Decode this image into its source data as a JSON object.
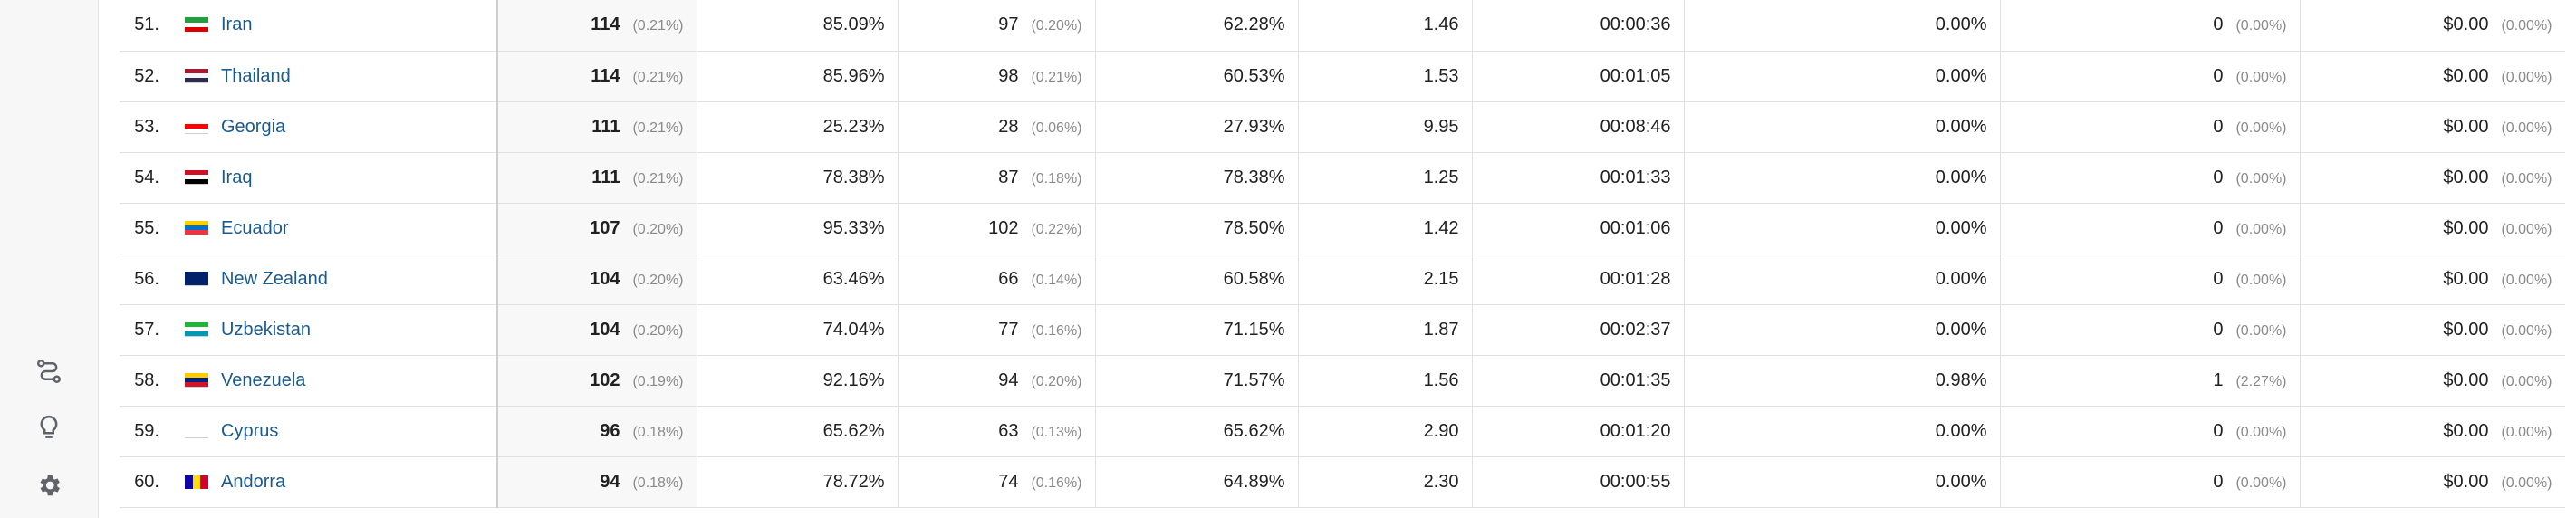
{
  "sidebar": {
    "icons": [
      {
        "name": "route-icon"
      },
      {
        "name": "lightbulb-icon"
      },
      {
        "name": "gear-icon"
      }
    ]
  },
  "rows": [
    {
      "index": "51.",
      "country": "Iran",
      "flag": [
        "#239f40",
        "#ffffff",
        "#da0000"
      ],
      "users": "114",
      "users_pct": "(0.21%)",
      "bounce": "85.09%",
      "new_users": "97",
      "new_users_pct": "(0.20%)",
      "rate2": "62.28%",
      "pages": "1.46",
      "duration": "00:00:36",
      "conv": "0.00%",
      "goal": "0",
      "goal_pct": "(0.00%)",
      "revenue": "$0.00",
      "revenue_pct": "(0.00%)"
    },
    {
      "index": "52.",
      "country": "Thailand",
      "flag": [
        "#a51931",
        "#f4f5f8",
        "#2d2a4a"
      ],
      "users": "114",
      "users_pct": "(0.21%)",
      "bounce": "85.96%",
      "new_users": "98",
      "new_users_pct": "(0.21%)",
      "rate2": "60.53%",
      "pages": "1.53",
      "duration": "00:01:05",
      "conv": "0.00%",
      "goal": "0",
      "goal_pct": "(0.00%)",
      "revenue": "$0.00",
      "revenue_pct": "(0.00%)"
    },
    {
      "index": "53.",
      "country": "Georgia",
      "flag": [
        "#ffffff",
        "#ff0000",
        "#ffffff"
      ],
      "users": "111",
      "users_pct": "(0.21%)",
      "bounce": "25.23%",
      "new_users": "28",
      "new_users_pct": "(0.06%)",
      "rate2": "27.93%",
      "pages": "9.95",
      "duration": "00:08:46",
      "conv": "0.00%",
      "goal": "0",
      "goal_pct": "(0.00%)",
      "revenue": "$0.00",
      "revenue_pct": "(0.00%)"
    },
    {
      "index": "54.",
      "country": "Iraq",
      "flag": [
        "#ce1126",
        "#ffffff",
        "#000000"
      ],
      "users": "111",
      "users_pct": "(0.21%)",
      "bounce": "78.38%",
      "new_users": "87",
      "new_users_pct": "(0.18%)",
      "rate2": "78.38%",
      "pages": "1.25",
      "duration": "00:01:33",
      "conv": "0.00%",
      "goal": "0",
      "goal_pct": "(0.00%)",
      "revenue": "$0.00",
      "revenue_pct": "(0.00%)"
    },
    {
      "index": "55.",
      "country": "Ecuador",
      "flag": [
        "#ffd100",
        "#0072ce",
        "#ef3340"
      ],
      "users": "107",
      "users_pct": "(0.20%)",
      "bounce": "95.33%",
      "new_users": "102",
      "new_users_pct": "(0.22%)",
      "rate2": "78.50%",
      "pages": "1.42",
      "duration": "00:01:06",
      "conv": "0.00%",
      "goal": "0",
      "goal_pct": "(0.00%)",
      "revenue": "$0.00",
      "revenue_pct": "(0.00%)"
    },
    {
      "index": "56.",
      "country": "New Zealand",
      "flag": [
        "#012169",
        "#012169",
        "#012169"
      ],
      "users": "104",
      "users_pct": "(0.20%)",
      "bounce": "63.46%",
      "new_users": "66",
      "new_users_pct": "(0.14%)",
      "rate2": "60.58%",
      "pages": "2.15",
      "duration": "00:01:28",
      "conv": "0.00%",
      "goal": "0",
      "goal_pct": "(0.00%)",
      "revenue": "$0.00",
      "revenue_pct": "(0.00%)"
    },
    {
      "index": "57.",
      "country": "Uzbekistan",
      "flag": [
        "#1eb53a",
        "#ffffff",
        "#0099b5"
      ],
      "users": "104",
      "users_pct": "(0.20%)",
      "bounce": "74.04%",
      "new_users": "77",
      "new_users_pct": "(0.16%)",
      "rate2": "71.15%",
      "pages": "1.87",
      "duration": "00:02:37",
      "conv": "0.00%",
      "goal": "0",
      "goal_pct": "(0.00%)",
      "revenue": "$0.00",
      "revenue_pct": "(0.00%)"
    },
    {
      "index": "58.",
      "country": "Venezuela",
      "flag": [
        "#ffcc00",
        "#00247d",
        "#cf142b"
      ],
      "users": "102",
      "users_pct": "(0.19%)",
      "bounce": "92.16%",
      "new_users": "94",
      "new_users_pct": "(0.20%)",
      "rate2": "71.57%",
      "pages": "1.56",
      "duration": "00:01:35",
      "conv": "0.98%",
      "goal": "1",
      "goal_pct": "(2.27%)",
      "revenue": "$0.00",
      "revenue_pct": "(0.00%)"
    },
    {
      "index": "59.",
      "country": "Cyprus",
      "flag": [
        "#ffffff",
        "#ffffff",
        "#ffffff"
      ],
      "users": "96",
      "users_pct": "(0.18%)",
      "bounce": "65.62%",
      "new_users": "63",
      "new_users_pct": "(0.13%)",
      "rate2": "65.62%",
      "pages": "2.90",
      "duration": "00:01:20",
      "conv": "0.00%",
      "goal": "0",
      "goal_pct": "(0.00%)",
      "revenue": "$0.00",
      "revenue_pct": "(0.00%)"
    },
    {
      "index": "60.",
      "country": "Andorra",
      "flag": [
        "#10069f",
        "#fedd00",
        "#d50032"
      ],
      "vertical": true,
      "users": "94",
      "users_pct": "(0.18%)",
      "bounce": "78.72%",
      "new_users": "74",
      "new_users_pct": "(0.16%)",
      "rate2": "64.89%",
      "pages": "2.30",
      "duration": "00:00:55",
      "conv": "0.00%",
      "goal": "0",
      "goal_pct": "(0.00%)",
      "revenue": "$0.00",
      "revenue_pct": "(0.00%)"
    }
  ]
}
